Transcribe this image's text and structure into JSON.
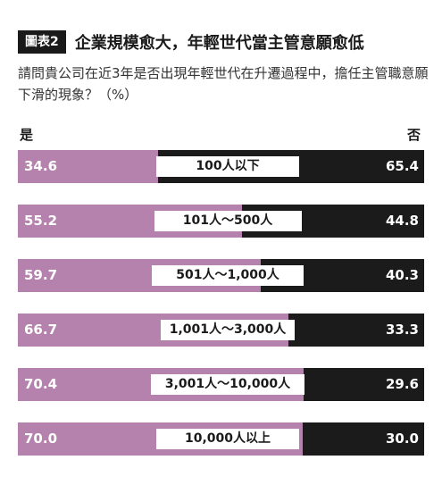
{
  "chart_data": {
    "type": "bar",
    "stacked": true,
    "orientation": "horizontal",
    "figure_label": "圖表2",
    "title": "企業規模愈大，年輕世代當主管意願愈低",
    "subtitle": "請問貴公司在近3年是否出現年輕世代在升遷過程中，擔任主管職意願下滑的現象？（%）",
    "left_label": "是",
    "right_label": "否",
    "categories": [
      "100人以下",
      "101人～500人",
      "501人～1,000人",
      "1,001人～3,000人",
      "3,001人～10,000人",
      "10,000人以上"
    ],
    "series": [
      {
        "name": "是",
        "values": [
          34.6,
          55.2,
          59.7,
          66.7,
          70.4,
          70.0
        ],
        "color": "#b482ad"
      },
      {
        "name": "否",
        "values": [
          65.4,
          44.8,
          40.3,
          33.3,
          29.6,
          30.0
        ],
        "color": "#1b1b1b"
      }
    ],
    "value_labels": {
      "yes": [
        "34.6",
        "55.2",
        "59.7",
        "66.7",
        "70.4",
        "70.0"
      ],
      "no": [
        "65.4",
        "44.8",
        "40.3",
        "33.3",
        "29.6",
        "30.0"
      ]
    },
    "xlim": [
      0,
      100
    ]
  }
}
